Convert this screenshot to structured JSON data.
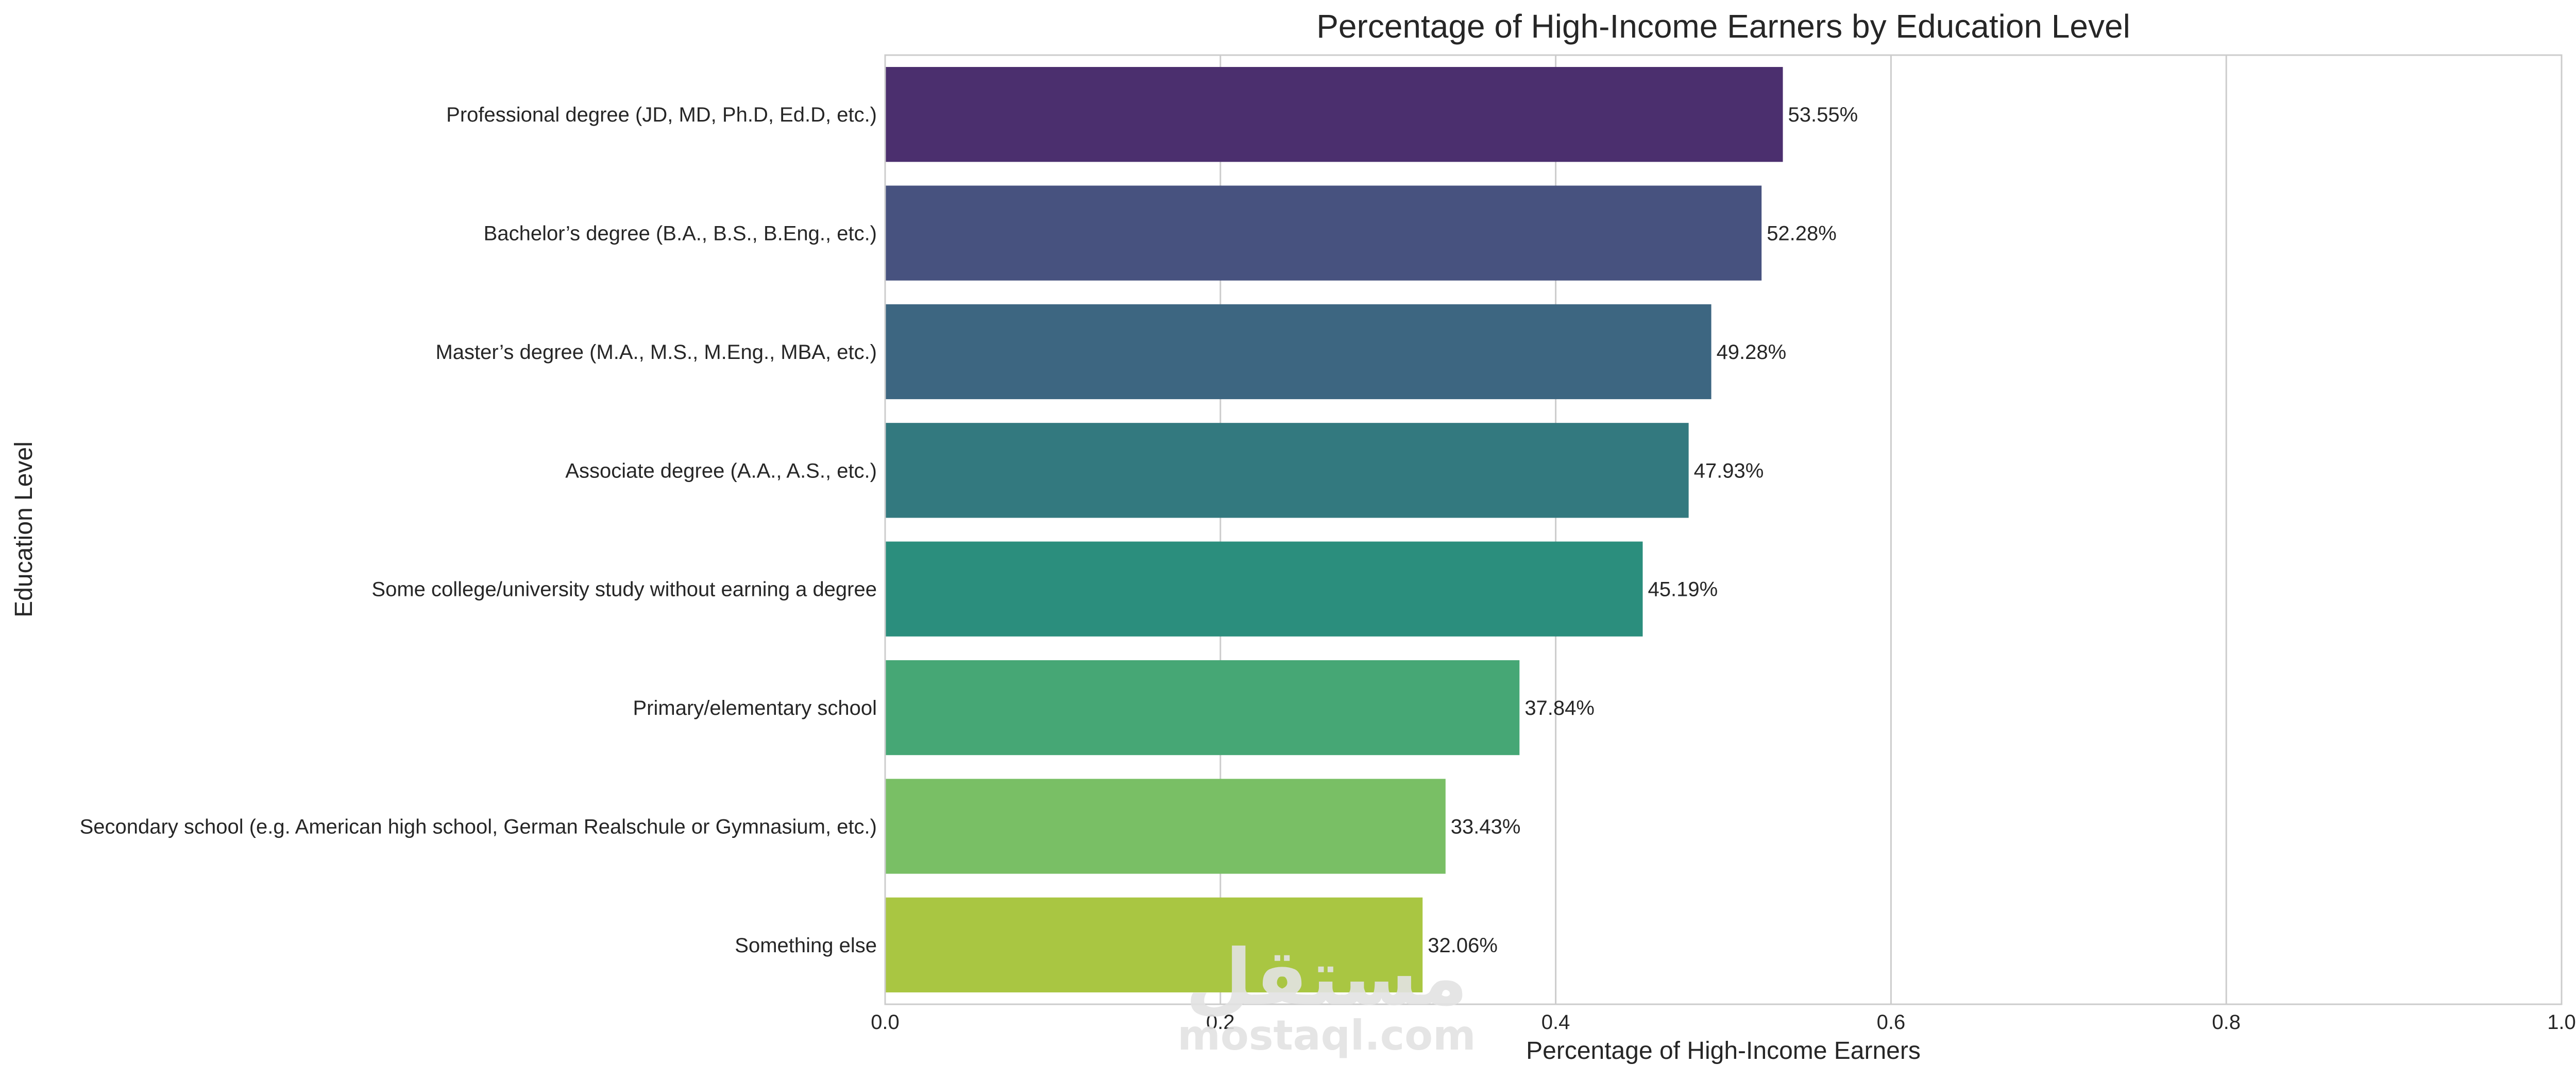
{
  "chart_data": {
    "type": "bar",
    "orientation": "horizontal",
    "title": "Percentage of High-Income Earners by Education Level",
    "xlabel": "Percentage of High-Income Earners",
    "ylabel": "Education Level",
    "xlim": [
      0,
      1.0
    ],
    "xticks": [
      "0.0",
      "0.2",
      "0.4",
      "0.6",
      "0.8",
      "1.0"
    ],
    "grid": true,
    "categories": [
      "Professional degree (JD, MD, Ph.D, Ed.D, etc.)",
      "Bachelor’s degree (B.A., B.S., B.Eng., etc.)",
      "Master’s degree (M.A., M.S., M.Eng., MBA, etc.)",
      "Associate degree (A.A., A.S., etc.)",
      "Some college/university study without earning a degree",
      "Primary/elementary school",
      "Secondary school (e.g. American high school, German Realschule or Gymnasium, etc.)",
      "Something else"
    ],
    "values": [
      0.5355,
      0.5228,
      0.4928,
      0.4793,
      0.4519,
      0.3784,
      0.3343,
      0.3206
    ],
    "data_labels": [
      "53.55%",
      "52.28%",
      "49.28%",
      "47.93%",
      "45.19%",
      "37.84%",
      "33.43%",
      "32.06%"
    ],
    "colors": [
      "#4b2f6e",
      "#47527f",
      "#3d6681",
      "#33797f",
      "#2b8e7d",
      "#46a775",
      "#79bf65",
      "#a9c642"
    ]
  },
  "watermark": {
    "arabic": "مستقل",
    "latin": "mostaql.com"
  }
}
